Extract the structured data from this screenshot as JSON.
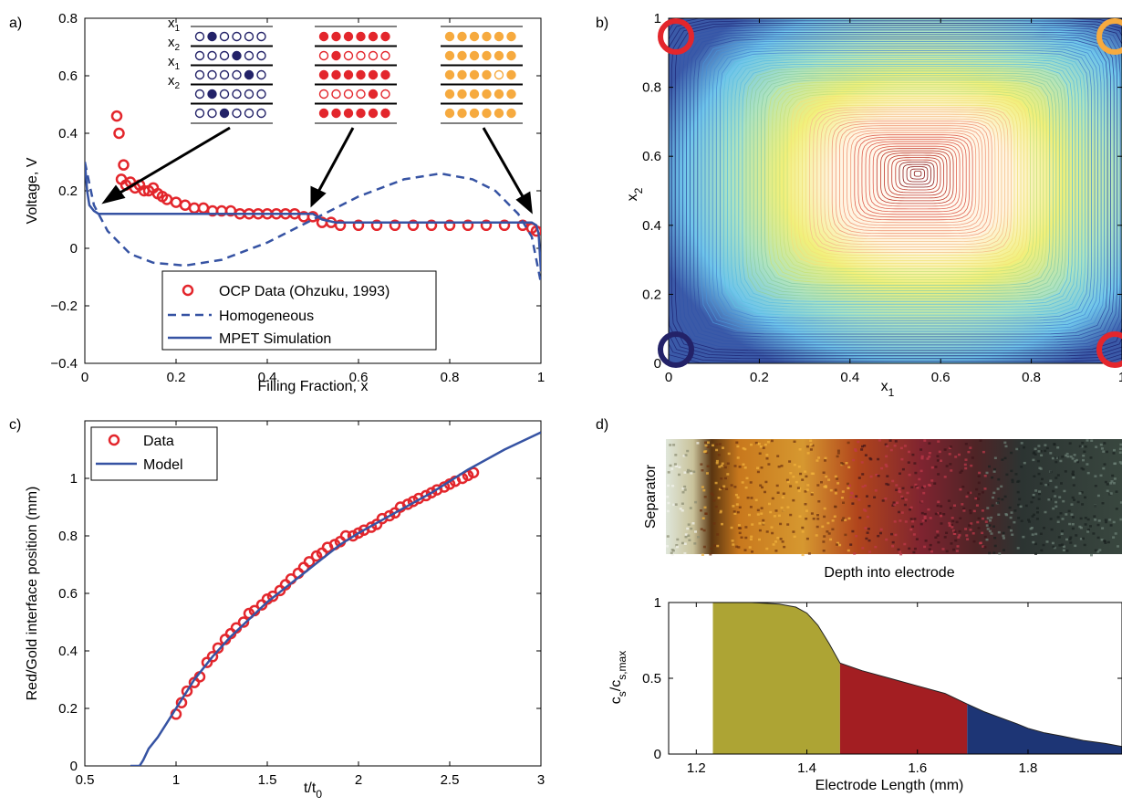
{
  "panel_labels": {
    "a": "a)",
    "b": "b)",
    "c": "c)",
    "d": "d)"
  },
  "chart_data": [
    {
      "id": "a",
      "type": "line",
      "xlabel": "Filling Fraction, x",
      "ylabel": "Voltage, V",
      "xlim": [
        0,
        1
      ],
      "ylim": [
        -0.4,
        0.8
      ],
      "xticks": [
        "0",
        "0.2",
        "0.4",
        "0.6",
        "0.8",
        "1"
      ],
      "yticks": [
        "−0.4",
        "−0.2",
        "0",
        "0.2",
        "0.4",
        "0.6",
        "0.8"
      ],
      "legend": [
        "OCP Data (Ohzuku, 1993)",
        "Homogeneous",
        "MPET Simulation"
      ],
      "legend_position": "bottom-center",
      "series": [
        {
          "name": "OCP Data (Ohzuku, 1993)",
          "style": "scatter",
          "color": "#e3262c",
          "x": [
            0.07,
            0.075,
            0.08,
            0.085,
            0.09,
            0.1,
            0.11,
            0.12,
            0.13,
            0.14,
            0.15,
            0.16,
            0.17,
            0.18,
            0.2,
            0.22,
            0.24,
            0.26,
            0.28,
            0.3,
            0.32,
            0.34,
            0.36,
            0.38,
            0.4,
            0.42,
            0.44,
            0.46,
            0.48,
            0.5,
            0.52,
            0.54,
            0.56,
            0.6,
            0.64,
            0.68,
            0.72,
            0.76,
            0.8,
            0.84,
            0.88,
            0.92,
            0.96,
            0.98,
            0.99
          ],
          "y": [
            0.46,
            0.4,
            0.24,
            0.29,
            0.22,
            0.23,
            0.21,
            0.22,
            0.2,
            0.2,
            0.21,
            0.19,
            0.18,
            0.17,
            0.16,
            0.15,
            0.14,
            0.14,
            0.13,
            0.13,
            0.13,
            0.12,
            0.12,
            0.12,
            0.12,
            0.12,
            0.12,
            0.12,
            0.11,
            0.11,
            0.09,
            0.09,
            0.08,
            0.08,
            0.08,
            0.08,
            0.08,
            0.08,
            0.08,
            0.08,
            0.08,
            0.08,
            0.08,
            0.07,
            0.06
          ]
        },
        {
          "name": "Homogeneous",
          "style": "dashed",
          "color": "#3653a3",
          "x": [
            0,
            0.02,
            0.05,
            0.1,
            0.15,
            0.22,
            0.3,
            0.4,
            0.5,
            0.6,
            0.7,
            0.78,
            0.85,
            0.9,
            0.95,
            0.98,
            1.0
          ],
          "y": [
            0.3,
            0.15,
            0.06,
            -0.02,
            -0.05,
            -0.06,
            -0.04,
            0.02,
            0.1,
            0.18,
            0.24,
            0.26,
            0.24,
            0.2,
            0.12,
            0.04,
            -0.12
          ]
        },
        {
          "name": "MPET Simulation",
          "style": "solid",
          "color": "#3653a3",
          "x": [
            0,
            0.005,
            0.01,
            0.02,
            0.03,
            0.05,
            0.1,
            0.2,
            0.3,
            0.4,
            0.45,
            0.48,
            0.5,
            0.52,
            0.55,
            0.6,
            0.7,
            0.8,
            0.9,
            0.96,
            0.98,
            0.99,
            0.995,
            1.0
          ],
          "y": [
            0.3,
            0.2,
            0.15,
            0.13,
            0.12,
            0.12,
            0.12,
            0.12,
            0.12,
            0.12,
            0.12,
            0.12,
            0.12,
            0.1,
            0.09,
            0.09,
            0.09,
            0.09,
            0.09,
            0.09,
            0.09,
            0.08,
            0.05,
            -0.08
          ]
        }
      ]
    },
    {
      "id": "b",
      "type": "contour",
      "xlabel": "x",
      "xlabel_sub": "1",
      "ylabel": "x",
      "ylabel_sub": "2",
      "xlim": [
        0,
        1
      ],
      "ylim": [
        0,
        1
      ],
      "xticks": [
        "0",
        "0.2",
        "0.4",
        "0.6",
        "0.8",
        "1"
      ],
      "yticks": [
        "0",
        "0.2",
        "0.4",
        "0.6",
        "0.8",
        "1"
      ],
      "minimum": [
        0.55,
        0.55
      ],
      "corner_markers": [
        {
          "corner": "bottom-left",
          "x": 0,
          "y": 0,
          "color": "#232268"
        },
        {
          "corner": "top-left",
          "x": 0,
          "y": 1,
          "color": "#e3262c"
        },
        {
          "corner": "bottom-right",
          "x": 1,
          "y": 0,
          "color": "#e3262c"
        },
        {
          "corner": "top-right",
          "x": 1,
          "y": 1,
          "color": "#f6aa3f"
        }
      ]
    },
    {
      "id": "c",
      "type": "line",
      "xlabel": "t/t",
      "xlabel_sub": "0",
      "ylabel": "Red/Gold interface position (mm)",
      "xlim": [
        0.5,
        3
      ],
      "ylim": [
        0,
        1.2
      ],
      "xticks": [
        "0.5",
        "1",
        "1.5",
        "2",
        "2.5",
        "3"
      ],
      "yticks": [
        "0",
        "0.2",
        "0.4",
        "0.6",
        "0.8",
        "1"
      ],
      "legend": [
        "Data",
        "Model"
      ],
      "legend_position": "top-left",
      "series": [
        {
          "name": "Data",
          "style": "scatter",
          "color": "#e3262c",
          "x": [
            1.0,
            1.03,
            1.06,
            1.1,
            1.13,
            1.17,
            1.2,
            1.23,
            1.27,
            1.3,
            1.33,
            1.37,
            1.4,
            1.43,
            1.47,
            1.5,
            1.53,
            1.57,
            1.6,
            1.63,
            1.67,
            1.7,
            1.73,
            1.77,
            1.8,
            1.83,
            1.87,
            1.9,
            1.93,
            1.97,
            2.0,
            2.03,
            2.07,
            2.1,
            2.13,
            2.17,
            2.2,
            2.23,
            2.27,
            2.3,
            2.33,
            2.37,
            2.4,
            2.43,
            2.47,
            2.5,
            2.53,
            2.57,
            2.6,
            2.63
          ],
          "y": [
            0.18,
            0.22,
            0.26,
            0.29,
            0.31,
            0.36,
            0.38,
            0.41,
            0.44,
            0.46,
            0.48,
            0.5,
            0.53,
            0.54,
            0.56,
            0.58,
            0.59,
            0.61,
            0.63,
            0.65,
            0.67,
            0.69,
            0.71,
            0.73,
            0.74,
            0.76,
            0.77,
            0.78,
            0.8,
            0.8,
            0.81,
            0.82,
            0.83,
            0.84,
            0.86,
            0.87,
            0.88,
            0.9,
            0.91,
            0.92,
            0.93,
            0.94,
            0.95,
            0.96,
            0.97,
            0.98,
            0.99,
            1.0,
            1.01,
            1.02
          ]
        },
        {
          "name": "Model",
          "style": "solid",
          "color": "#3653a3",
          "x": [
            0.75,
            0.8,
            0.82,
            0.85,
            0.9,
            0.95,
            1.0,
            1.1,
            1.2,
            1.3,
            1.4,
            1.5,
            1.6,
            1.7,
            1.8,
            1.9,
            2.0,
            2.2,
            2.4,
            2.6,
            2.8,
            3.0
          ],
          "y": [
            0,
            0,
            0.02,
            0.06,
            0.1,
            0.15,
            0.2,
            0.3,
            0.38,
            0.45,
            0.51,
            0.57,
            0.62,
            0.67,
            0.72,
            0.77,
            0.81,
            0.88,
            0.95,
            1.03,
            1.1,
            1.16
          ]
        }
      ]
    },
    {
      "id": "d_image",
      "type": "image",
      "ylabel": "Separator",
      "xlabel": "Depth into electrode"
    },
    {
      "id": "d",
      "type": "area",
      "xlabel": "Electrode Length (mm)",
      "ylabel": "c",
      "ylabel_parts": [
        "c",
        "s",
        "/c",
        "s,max"
      ],
      "xlim": [
        1.15,
        1.97
      ],
      "ylim": [
        0,
        1
      ],
      "xticks": [
        "1.2",
        "1.4",
        "1.6",
        "1.8"
      ],
      "yticks": [
        "0",
        "0.5",
        "1"
      ],
      "regions": [
        {
          "name": "gold",
          "color": "#ada434",
          "x": [
            1.23,
            1.3,
            1.35,
            1.38,
            1.4,
            1.42,
            1.44,
            1.46
          ],
          "y": [
            1.0,
            1.0,
            0.99,
            0.97,
            0.93,
            0.85,
            0.73,
            0.6
          ]
        },
        {
          "name": "red",
          "color": "#a31e22",
          "x": [
            1.46,
            1.5,
            1.55,
            1.6,
            1.65,
            1.69
          ],
          "y": [
            0.6,
            0.55,
            0.5,
            0.45,
            0.4,
            0.33
          ]
        },
        {
          "name": "blue",
          "color": "#1d3575",
          "x": [
            1.69,
            1.72,
            1.75,
            1.78,
            1.8,
            1.83,
            1.86,
            1.9,
            1.94,
            1.97
          ],
          "y": [
            0.33,
            0.28,
            0.24,
            0.2,
            0.17,
            0.14,
            0.12,
            0.09,
            0.07,
            0.05
          ]
        }
      ]
    }
  ],
  "schematic": {
    "x_labels": [
      "x",
      "x",
      "x",
      "x"
    ],
    "x_subs": [
      "1",
      "2",
      "1",
      "2"
    ],
    "blue_fill": [
      [
        1
      ],
      [
        3
      ],
      [
        4
      ],
      [
        1
      ],
      [
        2
      ]
    ],
    "red_open": [
      [],
      [
        0,
        2,
        3,
        4,
        5
      ],
      [],
      [
        0,
        1,
        2,
        3,
        5
      ],
      []
    ],
    "gold_open": [
      [],
      [],
      [
        4
      ],
      [],
      []
    ],
    "colors": {
      "blue": "#232268",
      "red": "#e3262c",
      "gold": "#f6aa3f"
    }
  }
}
